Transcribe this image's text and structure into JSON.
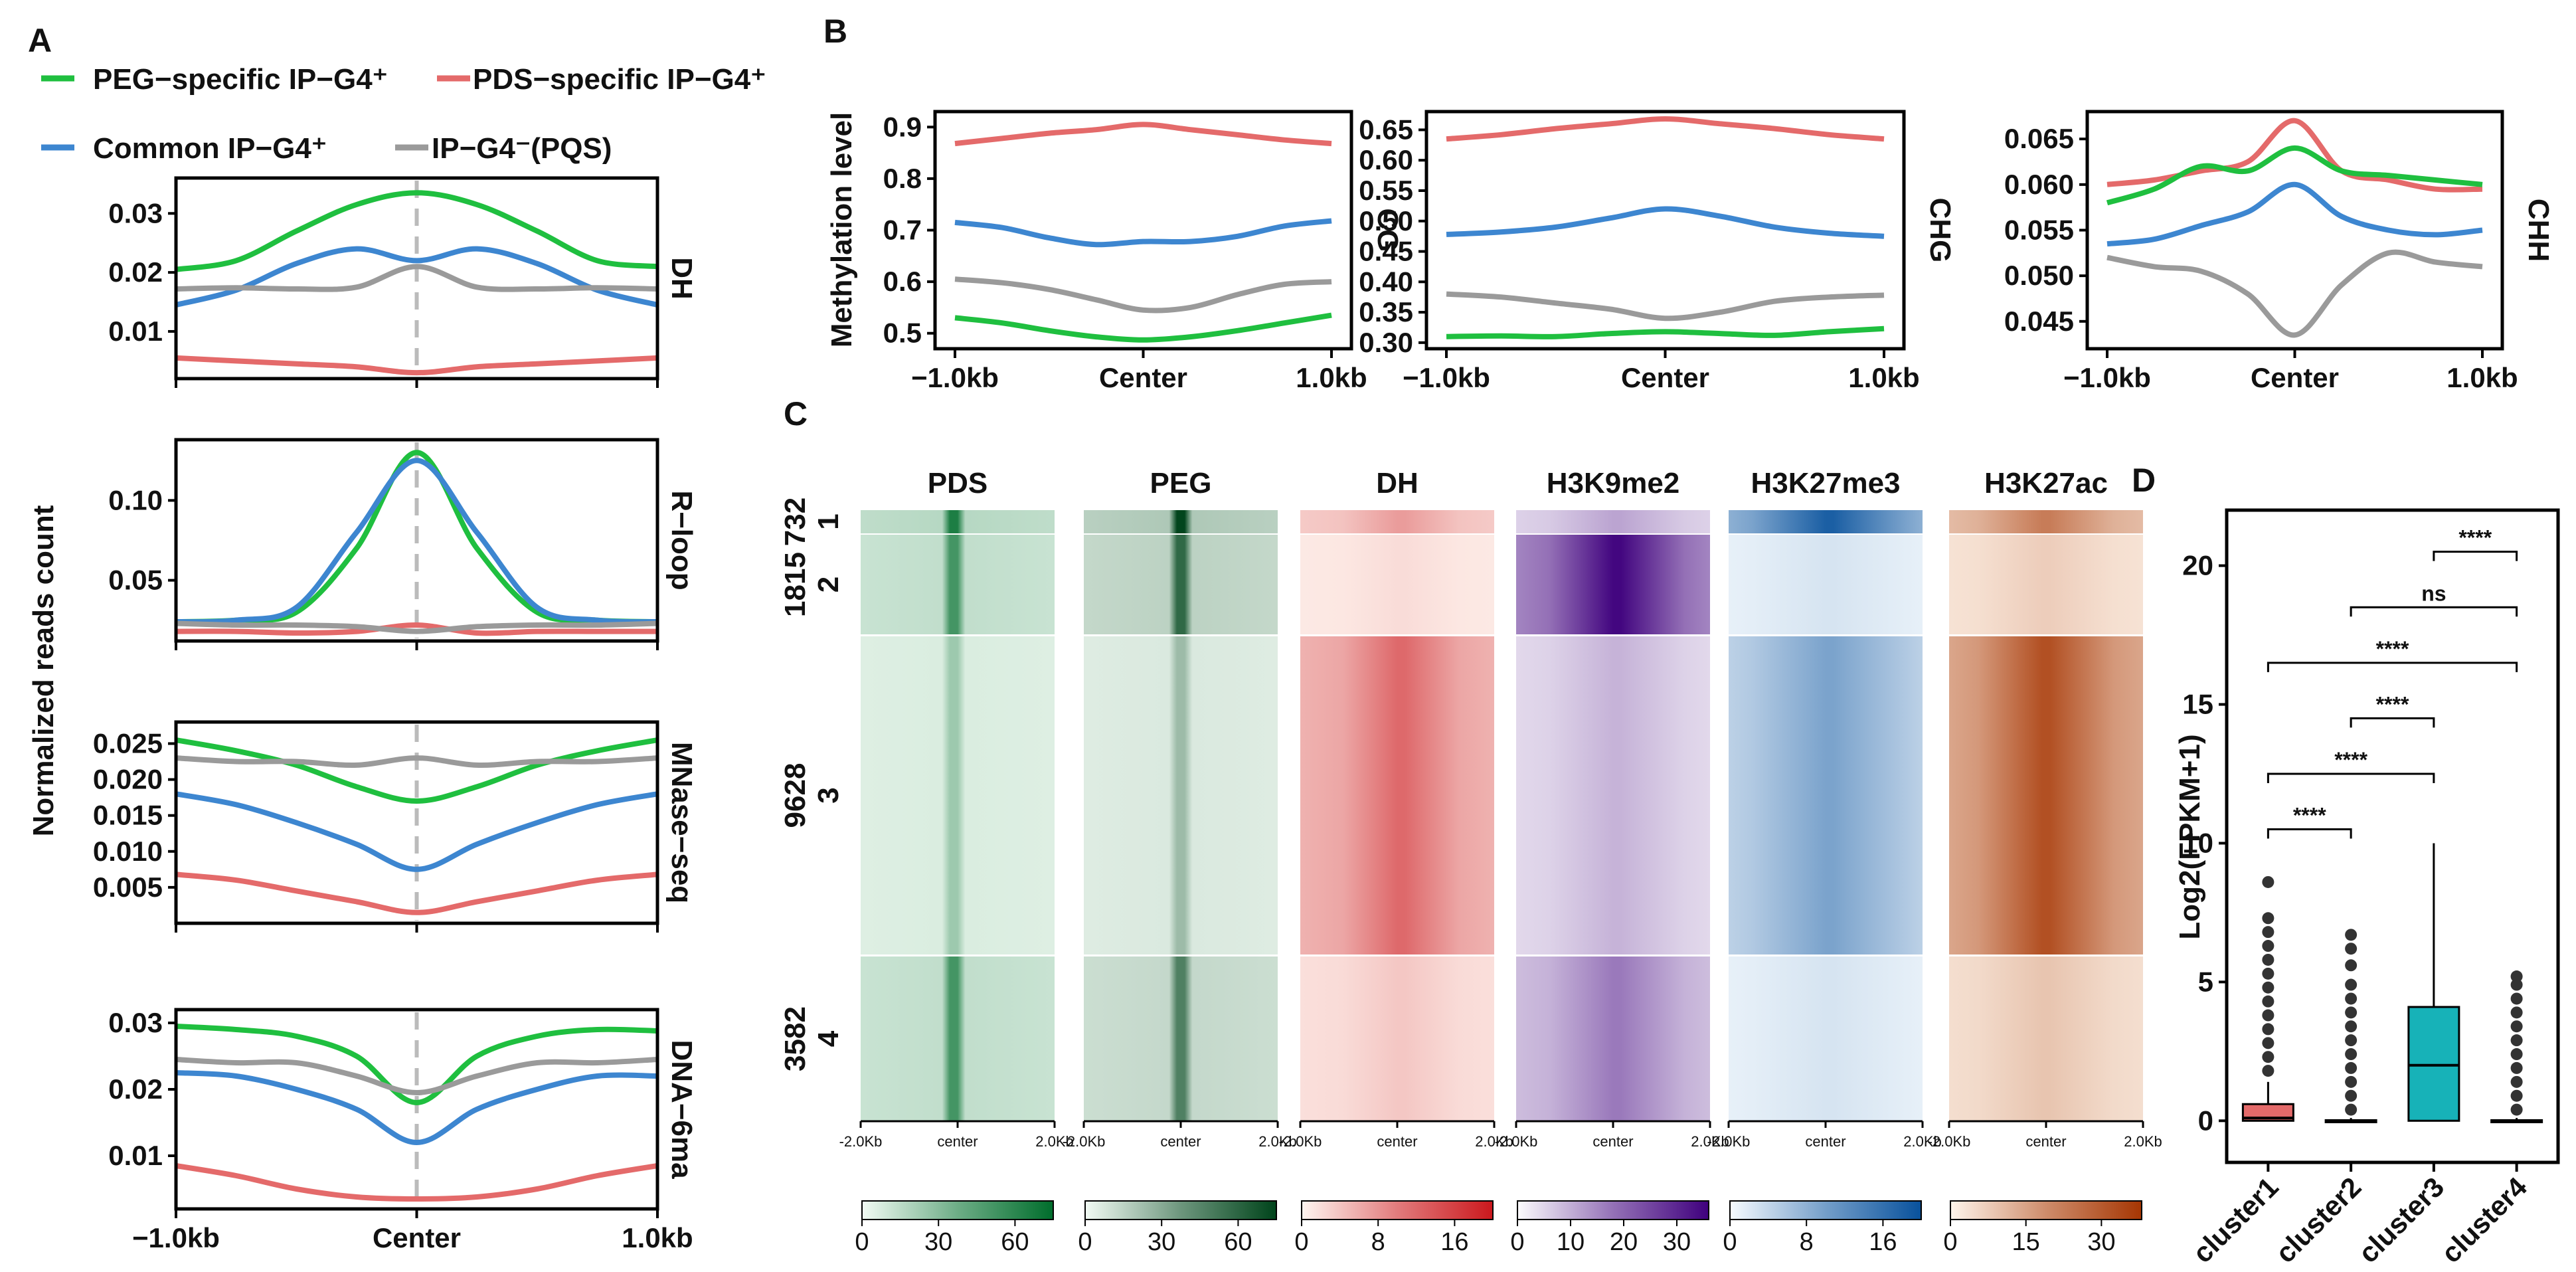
{
  "colors": {
    "PEG": "#1fbf3f",
    "PDS": "#e46a6a",
    "Common": "#3d86d0",
    "PQS": "#9a9a9a"
  },
  "panel_labels": [
    "A",
    "B",
    "C",
    "D"
  ],
  "legend": {
    "peg": "PEG−specific IP−G4⁺",
    "pds": "PDS−specific IP−G4⁺",
    "common": "Common  IP−G4⁺",
    "pqs": "IP−G4⁻(PQS)"
  },
  "chart_data": [
    {
      "id": "A",
      "type": "line",
      "ylabel": "Normalized reads count",
      "x_ticks": [
        "−1.0kb",
        "Center",
        "1.0kb"
      ],
      "x": [
        -1.0,
        -0.75,
        -0.5,
        -0.25,
        0.0,
        0.25,
        0.5,
        0.75,
        1.0
      ],
      "panels": [
        {
          "label": "DH",
          "ylim": [
            0.002,
            0.036
          ],
          "yticks": [
            0.01,
            0.02,
            0.03
          ],
          "ytick_labels": [
            "0.01",
            "0.02",
            "0.03"
          ],
          "series": [
            {
              "name": "PEG",
              "values": [
                0.0205,
                0.022,
                0.027,
                0.0315,
                0.0335,
                0.0315,
                0.027,
                0.022,
                0.021
              ]
            },
            {
              "name": "PDS",
              "values": [
                0.0055,
                0.005,
                0.0045,
                0.004,
                0.003,
                0.004,
                0.0045,
                0.005,
                0.0055
              ]
            },
            {
              "name": "Common",
              "values": [
                0.0145,
                0.017,
                0.0215,
                0.024,
                0.022,
                0.024,
                0.0215,
                0.017,
                0.0145
              ]
            },
            {
              "name": "PQS",
              "values": [
                0.0172,
                0.0174,
                0.0172,
                0.0175,
                0.021,
                0.0175,
                0.0172,
                0.0174,
                0.0172
              ]
            }
          ]
        },
        {
          "label": "R−loop",
          "ylim": [
            0.012,
            0.138
          ],
          "yticks": [
            0.05,
            0.1
          ],
          "ytick_labels": [
            "0.05",
            "0.10"
          ],
          "series": [
            {
              "name": "PEG",
              "values": [
                0.024,
                0.025,
                0.03,
                0.07,
                0.13,
                0.07,
                0.03,
                0.025,
                0.024
              ]
            },
            {
              "name": "PDS",
              "values": [
                0.018,
                0.018,
                0.017,
                0.018,
                0.022,
                0.017,
                0.018,
                0.018,
                0.018
              ]
            },
            {
              "name": "Common",
              "values": [
                0.024,
                0.025,
                0.033,
                0.08,
                0.125,
                0.08,
                0.033,
                0.025,
                0.024
              ]
            },
            {
              "name": "PQS",
              "values": [
                0.023,
                0.022,
                0.022,
                0.021,
                0.018,
                0.021,
                0.022,
                0.022,
                0.023
              ]
            }
          ]
        },
        {
          "label": "MNase−seq",
          "ylim": [
            0.0,
            0.028
          ],
          "yticks": [
            0.005,
            0.01,
            0.015,
            0.02,
            0.025
          ],
          "ytick_labels": [
            "0.005",
            "0.010",
            "0.015",
            "0.020",
            "0.025"
          ],
          "series": [
            {
              "name": "PEG",
              "values": [
                0.0255,
                0.024,
                0.022,
                0.019,
                0.017,
                0.019,
                0.022,
                0.024,
                0.0255
              ]
            },
            {
              "name": "PDS",
              "values": [
                0.0068,
                0.006,
                0.0045,
                0.003,
                0.0015,
                0.003,
                0.0045,
                0.006,
                0.0068
              ]
            },
            {
              "name": "Common",
              "values": [
                0.018,
                0.0165,
                0.014,
                0.011,
                0.0075,
                0.011,
                0.014,
                0.0165,
                0.018
              ]
            },
            {
              "name": "PQS",
              "values": [
                0.023,
                0.0225,
                0.0225,
                0.022,
                0.023,
                0.022,
                0.0225,
                0.0225,
                0.023
              ]
            }
          ]
        },
        {
          "label": "DNA−6ma",
          "ylim": [
            0.002,
            0.032
          ],
          "yticks": [
            0.01,
            0.02,
            0.03
          ],
          "ytick_labels": [
            "0.01",
            "0.02",
            "0.03"
          ],
          "series": [
            {
              "name": "PEG",
              "values": [
                0.0295,
                0.029,
                0.028,
                0.025,
                0.018,
                0.025,
                0.028,
                0.029,
                0.0288
              ]
            },
            {
              "name": "PDS",
              "values": [
                0.0085,
                0.007,
                0.005,
                0.0038,
                0.0035,
                0.0038,
                0.005,
                0.007,
                0.0085
              ]
            },
            {
              "name": "Common",
              "values": [
                0.0225,
                0.022,
                0.02,
                0.017,
                0.012,
                0.017,
                0.02,
                0.022,
                0.022
              ]
            },
            {
              "name": "PQS",
              "values": [
                0.0245,
                0.024,
                0.024,
                0.022,
                0.0195,
                0.022,
                0.024,
                0.024,
                0.0245
              ]
            }
          ]
        }
      ]
    },
    {
      "id": "B",
      "type": "line",
      "ylabel": "Methylation level",
      "x_ticks": [
        "−1.0kb",
        "Center",
        "1.0kb"
      ],
      "x": [
        -1.0,
        -0.75,
        -0.5,
        -0.25,
        0.0,
        0.25,
        0.5,
        0.75,
        1.0
      ],
      "panels": [
        {
          "label": "CG",
          "ylim": [
            0.47,
            0.93
          ],
          "yticks": [
            0.5,
            0.6,
            0.7,
            0.8,
            0.9
          ],
          "ytick_labels": [
            "0.5",
            "0.6",
            "0.7",
            "0.8",
            "0.9"
          ],
          "series": [
            {
              "name": "PDS",
              "values": [
                0.868,
                0.878,
                0.888,
                0.895,
                0.905,
                0.895,
                0.885,
                0.875,
                0.868
              ]
            },
            {
              "name": "Common",
              "values": [
                0.715,
                0.705,
                0.685,
                0.672,
                0.678,
                0.678,
                0.688,
                0.708,
                0.718
              ]
            },
            {
              "name": "PQS",
              "values": [
                0.605,
                0.598,
                0.585,
                0.565,
                0.545,
                0.55,
                0.575,
                0.595,
                0.6
              ]
            },
            {
              "name": "PEG",
              "values": [
                0.53,
                0.52,
                0.505,
                0.493,
                0.487,
                0.493,
                0.505,
                0.52,
                0.535
              ]
            }
          ]
        },
        {
          "label": "CHG",
          "ylim": [
            0.29,
            0.68
          ],
          "yticks": [
            0.3,
            0.35,
            0.4,
            0.45,
            0.5,
            0.55,
            0.6,
            0.65
          ],
          "ytick_labels": [
            "0.30",
            "0.35",
            "0.40",
            "0.45",
            "0.50",
            "0.55",
            "0.60",
            "0.65"
          ],
          "series": [
            {
              "name": "PDS",
              "values": [
                0.635,
                0.642,
                0.652,
                0.66,
                0.668,
                0.66,
                0.652,
                0.642,
                0.635
              ]
            },
            {
              "name": "Common",
              "values": [
                0.478,
                0.482,
                0.49,
                0.505,
                0.52,
                0.508,
                0.49,
                0.48,
                0.475
              ]
            },
            {
              "name": "PQS",
              "values": [
                0.38,
                0.375,
                0.365,
                0.355,
                0.34,
                0.35,
                0.368,
                0.375,
                0.378
              ]
            },
            {
              "name": "PEG",
              "values": [
                0.31,
                0.311,
                0.31,
                0.315,
                0.318,
                0.315,
                0.312,
                0.318,
                0.323
              ]
            }
          ]
        },
        {
          "label": "CHH",
          "ylim": [
            0.042,
            0.068
          ],
          "yticks": [
            0.045,
            0.05,
            0.055,
            0.06,
            0.065
          ],
          "ytick_labels": [
            "0.045",
            "0.050",
            "0.055",
            "0.060",
            "0.065"
          ],
          "series": [
            {
              "name": "PDS",
              "values": [
                0.06,
                0.0605,
                0.0615,
                0.0625,
                0.067,
                0.0615,
                0.0605,
                0.0595,
                0.0595
              ]
            },
            {
              "name": "PEG",
              "values": [
                0.058,
                0.0595,
                0.062,
                0.0615,
                0.064,
                0.0615,
                0.061,
                0.0605,
                0.06
              ]
            },
            {
              "name": "Common",
              "values": [
                0.0535,
                0.054,
                0.0555,
                0.057,
                0.06,
                0.0565,
                0.055,
                0.0545,
                0.055
              ]
            },
            {
              "name": "PQS",
              "values": [
                0.052,
                0.051,
                0.0505,
                0.048,
                0.0435,
                0.049,
                0.0525,
                0.0515,
                0.051
              ]
            }
          ]
        }
      ]
    },
    {
      "id": "C",
      "type": "heatmap",
      "columns": [
        "PDS",
        "PEG",
        "DH",
        "H3K9me2",
        "H3K27me3",
        "H3K27ac"
      ],
      "x_ticks": [
        "-2.0Kb",
        "center",
        "2.0Kb"
      ],
      "clusters": [
        {
          "id": "1",
          "count": "732"
        },
        {
          "id": "2",
          "count": "1815"
        },
        {
          "id": "3",
          "count": "9628"
        },
        {
          "id": "4",
          "count": "3582"
        }
      ],
      "colorbars": [
        {
          "ticks": [
            "0",
            "30",
            "60"
          ],
          "max": 75,
          "low": "#f2fbf4",
          "high": "#006d2c"
        },
        {
          "ticks": [
            "0",
            "30",
            "60"
          ],
          "max": 75,
          "low": "#f2fbf4",
          "high": "#00441b"
        },
        {
          "ticks": [
            "0",
            "8",
            "16"
          ],
          "max": 20,
          "low": "#fff5f0",
          "high": "#cb181d"
        },
        {
          "ticks": [
            "0",
            "10",
            "20",
            "30"
          ],
          "max": 36,
          "low": "#fcfbfd",
          "high": "#3f007d"
        },
        {
          "ticks": [
            "0",
            "8",
            "16"
          ],
          "max": 20,
          "low": "#f7fbff",
          "high": "#08519c"
        },
        {
          "ticks": [
            "0",
            "15",
            "30"
          ],
          "max": 38,
          "low": "#fff5eb",
          "high": "#a63603"
        }
      ],
      "intensity": [
        [
          0.55,
          0.62,
          0.35,
          0.3,
          0.8,
          0.55
        ],
        [
          0.45,
          0.5,
          0.1,
          0.85,
          0.12,
          0.18
        ],
        [
          0.22,
          0.22,
          0.55,
          0.25,
          0.45,
          0.75
        ],
        [
          0.45,
          0.42,
          0.18,
          0.45,
          0.12,
          0.22
        ]
      ]
    },
    {
      "id": "D",
      "type": "box",
      "ylabel": "Log2(FPKM+1)",
      "ylim": [
        -1.5,
        22
      ],
      "yticks": [
        0,
        5,
        10,
        15,
        20
      ],
      "ytick_labels": [
        "0",
        "5",
        "10",
        "15",
        "20"
      ],
      "categories": [
        "cluster1",
        "cluster2",
        "cluster3",
        "cluster4"
      ],
      "box_colors": [
        "#e46a6a",
        "#8fbf3f",
        "#17b2b8",
        "#9b7fd1"
      ],
      "boxes": [
        {
          "min": 0,
          "q1": 0,
          "median": 0.1,
          "q3": 0.6,
          "max": 1.4,
          "outliers": [
            1.8,
            2.3,
            2.8,
            3.3,
            3.8,
            4.3,
            4.8,
            5.3,
            5.8,
            6.3,
            6.8,
            7.3,
            8.6
          ]
        },
        {
          "min": 0,
          "q1": 0,
          "median": 0,
          "q3": 0.02,
          "max": 0.1,
          "outliers": [
            0.4,
            0.9,
            1.4,
            1.9,
            2.4,
            2.9,
            3.4,
            3.9,
            4.4,
            4.9,
            5.6,
            6.2,
            6.7
          ]
        },
        {
          "min": 0,
          "q1": 0,
          "median": 2.0,
          "q3": 4.1,
          "max": 10.0,
          "outliers": []
        },
        {
          "min": 0,
          "q1": 0,
          "median": 0,
          "q3": 0.02,
          "max": 0.1,
          "outliers": [
            0.4,
            0.9,
            1.4,
            1.9,
            2.4,
            2.9,
            3.4,
            3.9,
            4.4,
            4.9,
            5.2
          ]
        }
      ],
      "comparisons": [
        {
          "from": 0,
          "to": 1,
          "y": 10.5,
          "label": "****"
        },
        {
          "from": 0,
          "to": 2,
          "y": 12.5,
          "label": "****"
        },
        {
          "from": 1,
          "to": 2,
          "y": 14.5,
          "label": "****"
        },
        {
          "from": 0,
          "to": 3,
          "y": 16.5,
          "label": "****"
        },
        {
          "from": 1,
          "to": 3,
          "y": 18.5,
          "label": "ns"
        },
        {
          "from": 2,
          "to": 3,
          "y": 20.5,
          "label": "****"
        }
      ]
    }
  ]
}
